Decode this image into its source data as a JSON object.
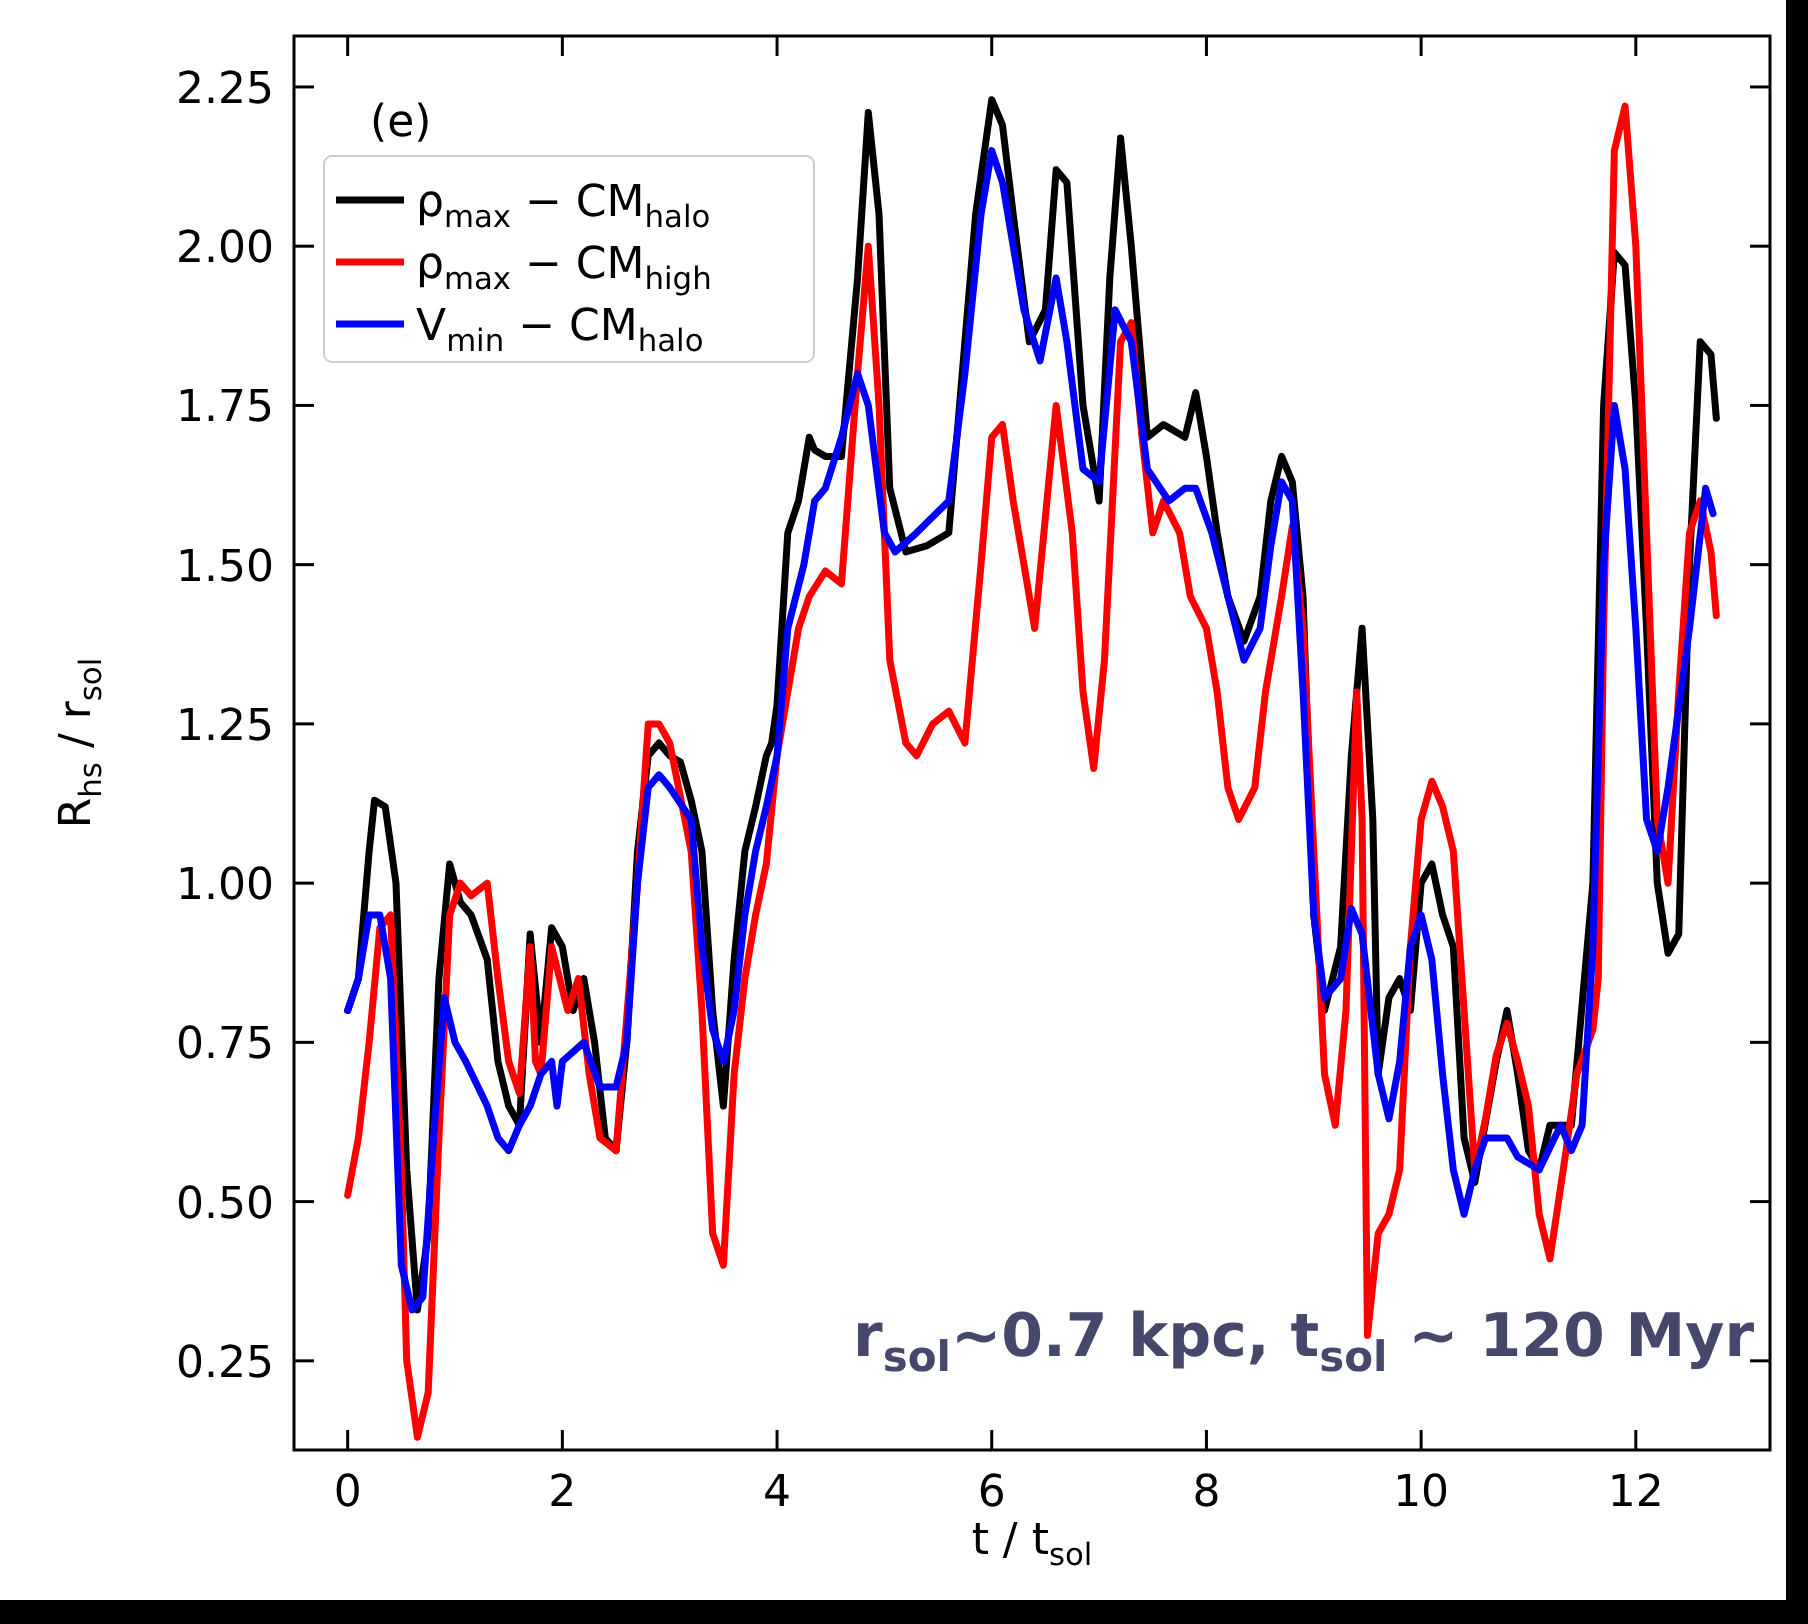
{
  "chart_data": {
    "type": "line",
    "xlabel": "t / t$_{sol}$",
    "ylabel": "R$_{hs}$ / r$_{sol}$",
    "xlim": [
      -0.5,
      13.25
    ],
    "ylim": [
      0.11,
      2.33
    ],
    "xticks": [
      0,
      2,
      4,
      6,
      8,
      10,
      12
    ],
    "yticks": [
      {
        "value": 0.25,
        "label": "0.25"
      },
      {
        "value": 0.5,
        "label": "0.50"
      },
      {
        "value": 0.75,
        "label": "0.75"
      },
      {
        "value": 1,
        "label": "1.00"
      },
      {
        "value": 1.25,
        "label": "1.25"
      },
      {
        "value": 1.5,
        "label": "1.50"
      },
      {
        "value": 1.75,
        "label": "1.75"
      },
      {
        "value": 2,
        "label": "2.00"
      },
      {
        "value": 2.25,
        "label": "2.25"
      }
    ],
    "grid": false,
    "legend": "top left",
    "line_style": "solid",
    "marker": "none",
    "annotations": [
      "(e)",
      "r$_{sol}$~0.7 kpc, t$_{sol}$ ~ 120 Myr"
    ],
    "series": [
      {
        "name": "ρ$_{max}$ − CM$_{halo}$",
        "color": "#000000",
        "x": [
          0,
          0.1,
          0.2,
          0.25,
          0.35,
          0.45,
          0.55,
          0.65,
          0.75,
          0.85,
          0.95,
          1.05,
          1.15,
          1.3,
          1.4,
          1.5,
          1.6,
          1.7,
          1.8,
          1.9,
          2.0,
          2.1,
          2.2,
          2.3,
          2.4,
          2.5,
          2.6,
          2.7,
          2.8,
          2.9,
          3.0,
          3.1,
          3.2,
          3.3,
          3.4,
          3.5,
          3.6,
          3.7,
          3.8,
          3.9,
          3.95,
          4.0,
          4.1,
          4.2,
          4.3,
          4.35,
          4.45,
          4.6,
          4.75,
          4.85,
          4.95,
          5.05,
          5.2,
          5.4,
          5.6,
          5.7,
          5.85,
          6.0,
          6.1,
          6.2,
          6.35,
          6.5,
          6.6,
          6.7,
          6.85,
          7.0,
          7.1,
          7.2,
          7.3,
          7.45,
          7.6,
          7.8,
          7.9,
          8.0,
          8.1,
          8.2,
          8.35,
          8.5,
          8.6,
          8.7,
          8.8,
          8.9,
          9.0,
          9.1,
          9.25,
          9.35,
          9.45,
          9.55,
          9.6,
          9.7,
          9.8,
          9.9,
          10.0,
          10.1,
          10.2,
          10.3,
          10.4,
          10.5,
          10.7,
          10.8,
          10.9,
          11.0,
          11.1,
          11.2,
          11.4,
          11.6,
          11.7,
          11.8,
          11.9,
          12.0,
          12.1,
          12.2,
          12.3,
          12.4,
          12.5,
          12.6,
          12.7,
          12.75
        ],
        "values": [
          0.8,
          0.85,
          1.05,
          1.13,
          1.12,
          1.0,
          0.55,
          0.33,
          0.45,
          0.85,
          1.03,
          0.97,
          0.95,
          0.88,
          0.72,
          0.65,
          0.62,
          0.92,
          0.75,
          0.93,
          0.9,
          0.8,
          0.85,
          0.75,
          0.6,
          0.58,
          0.75,
          1.05,
          1.2,
          1.22,
          1.2,
          1.19,
          1.13,
          1.05,
          0.8,
          0.65,
          0.88,
          1.05,
          1.12,
          1.2,
          1.22,
          1.28,
          1.55,
          1.6,
          1.7,
          1.68,
          1.67,
          1.67,
          1.95,
          2.21,
          2.05,
          1.62,
          1.52,
          1.53,
          1.55,
          1.75,
          2.05,
          2.23,
          2.19,
          2.05,
          1.85,
          1.9,
          2.12,
          2.1,
          1.75,
          1.6,
          1.95,
          2.17,
          2.0,
          1.7,
          1.72,
          1.7,
          1.77,
          1.67,
          1.55,
          1.45,
          1.38,
          1.45,
          1.6,
          1.67,
          1.63,
          1.45,
          0.95,
          0.8,
          0.9,
          1.2,
          1.4,
          1.1,
          0.7,
          0.82,
          0.85,
          0.8,
          1.0,
          1.03,
          0.95,
          0.9,
          0.6,
          0.53,
          0.72,
          0.8,
          0.7,
          0.58,
          0.55,
          0.62,
          0.62,
          1.0,
          1.75,
          1.99,
          1.97,
          1.75,
          1.4,
          1.0,
          0.89,
          0.92,
          1.5,
          1.85,
          1.83,
          1.73
        ]
      },
      {
        "name": "ρ$_{max}$ − CM$_{high}$",
        "color": "#ff0000",
        "x": [
          0,
          0.1,
          0.2,
          0.3,
          0.4,
          0.5,
          0.55,
          0.65,
          0.75,
          0.85,
          0.95,
          1.05,
          1.15,
          1.3,
          1.4,
          1.5,
          1.6,
          1.7,
          1.75,
          1.8,
          1.9,
          2.05,
          2.15,
          2.25,
          2.35,
          2.5,
          2.7,
          2.8,
          2.9,
          3.0,
          3.2,
          3.3,
          3.4,
          3.5,
          3.6,
          3.7,
          3.8,
          3.9,
          4.0,
          4.2,
          4.3,
          4.45,
          4.6,
          4.75,
          4.85,
          4.95,
          5.05,
          5.2,
          5.3,
          5.45,
          5.6,
          5.75,
          5.9,
          6.0,
          6.1,
          6.2,
          6.4,
          6.6,
          6.75,
          6.85,
          6.95,
          7.05,
          7.2,
          7.3,
          7.4,
          7.5,
          7.6,
          7.75,
          7.85,
          8.0,
          8.1,
          8.2,
          8.3,
          8.45,
          8.55,
          8.7,
          8.8,
          8.9,
          9.0,
          9.1,
          9.2,
          9.3,
          9.4,
          9.45,
          9.5,
          9.6,
          9.7,
          9.8,
          9.9,
          10.0,
          10.1,
          10.2,
          10.3,
          10.4,
          10.5,
          10.6,
          10.7,
          10.8,
          10.9,
          11.0,
          11.1,
          11.2,
          11.35,
          11.45,
          11.6,
          11.65,
          11.7,
          11.8,
          11.9,
          12.0,
          12.1,
          12.2,
          12.3,
          12.4,
          12.5,
          12.6,
          12.7,
          12.75
        ],
        "values": [
          0.51,
          0.6,
          0.75,
          0.93,
          0.95,
          0.55,
          0.25,
          0.13,
          0.2,
          0.6,
          0.95,
          1.0,
          0.98,
          1.0,
          0.85,
          0.72,
          0.67,
          0.9,
          0.72,
          0.7,
          0.9,
          0.8,
          0.85,
          0.7,
          0.6,
          0.58,
          1.0,
          1.25,
          1.25,
          1.22,
          1.05,
          0.8,
          0.45,
          0.4,
          0.7,
          0.85,
          0.95,
          1.03,
          1.2,
          1.4,
          1.45,
          1.49,
          1.47,
          1.8,
          2.0,
          1.75,
          1.35,
          1.22,
          1.2,
          1.25,
          1.27,
          1.22,
          1.5,
          1.7,
          1.72,
          1.6,
          1.4,
          1.75,
          1.55,
          1.3,
          1.18,
          1.35,
          1.85,
          1.88,
          1.7,
          1.55,
          1.6,
          1.55,
          1.45,
          1.4,
          1.3,
          1.15,
          1.1,
          1.15,
          1.3,
          1.45,
          1.56,
          1.4,
          1.05,
          0.7,
          0.62,
          0.8,
          1.3,
          1.1,
          0.29,
          0.45,
          0.48,
          0.55,
          0.9,
          1.1,
          1.16,
          1.12,
          1.05,
          0.8,
          0.55,
          0.63,
          0.73,
          0.78,
          0.72,
          0.65,
          0.48,
          0.41,
          0.58,
          0.7,
          0.77,
          0.85,
          1.4,
          2.15,
          2.22,
          2.0,
          1.55,
          1.1,
          1.0,
          1.3,
          1.55,
          1.6,
          1.52,
          1.42
        ]
      },
      {
        "name": "V$_{min}$ − CM$_{halo}$",
        "color": "#0000ff",
        "x": [
          0,
          0.1,
          0.2,
          0.3,
          0.4,
          0.5,
          0.6,
          0.7,
          0.8,
          0.9,
          1.0,
          1.1,
          1.3,
          1.4,
          1.5,
          1.6,
          1.7,
          1.8,
          1.9,
          1.95,
          2.0,
          2.2,
          2.35,
          2.5,
          2.6,
          2.7,
          2.8,
          2.9,
          3.0,
          3.2,
          3.3,
          3.4,
          3.5,
          3.6,
          3.7,
          3.8,
          3.9,
          4.0,
          4.1,
          4.25,
          4.35,
          4.45,
          4.6,
          4.75,
          4.85,
          5.0,
          5.1,
          5.3,
          5.6,
          5.75,
          5.9,
          6.0,
          6.1,
          6.3,
          6.45,
          6.6,
          6.7,
          6.85,
          7.0,
          7.15,
          7.3,
          7.45,
          7.65,
          7.8,
          7.9,
          8.05,
          8.2,
          8.35,
          8.5,
          8.6,
          8.7,
          8.8,
          8.9,
          9.0,
          9.1,
          9.25,
          9.35,
          9.45,
          9.6,
          9.7,
          9.8,
          9.9,
          10.0,
          10.1,
          10.2,
          10.3,
          10.4,
          10.5,
          10.6,
          10.8,
          10.9,
          11.1,
          11.3,
          11.4,
          11.5,
          11.6,
          11.7,
          11.8,
          11.9,
          12.0,
          12.1,
          12.2,
          12.3,
          12.5,
          12.65,
          12.72
        ],
        "values": [
          0.8,
          0.85,
          0.95,
          0.95,
          0.85,
          0.4,
          0.33,
          0.35,
          0.6,
          0.82,
          0.75,
          0.72,
          0.65,
          0.6,
          0.58,
          0.62,
          0.65,
          0.7,
          0.72,
          0.65,
          0.72,
          0.75,
          0.68,
          0.68,
          0.75,
          1.0,
          1.15,
          1.17,
          1.15,
          1.1,
          0.9,
          0.77,
          0.72,
          0.8,
          0.95,
          1.05,
          1.12,
          1.2,
          1.4,
          1.5,
          1.6,
          1.62,
          1.7,
          1.8,
          1.75,
          1.55,
          1.52,
          1.55,
          1.6,
          1.8,
          2.05,
          2.15,
          2.1,
          1.9,
          1.82,
          1.95,
          1.85,
          1.65,
          1.63,
          1.9,
          1.85,
          1.65,
          1.6,
          1.62,
          1.62,
          1.55,
          1.45,
          1.35,
          1.4,
          1.53,
          1.63,
          1.6,
          1.3,
          0.95,
          0.82,
          0.85,
          0.96,
          0.92,
          0.7,
          0.63,
          0.72,
          0.9,
          0.95,
          0.88,
          0.7,
          0.55,
          0.48,
          0.55,
          0.6,
          0.6,
          0.57,
          0.55,
          0.62,
          0.58,
          0.62,
          0.9,
          1.5,
          1.75,
          1.65,
          1.4,
          1.1,
          1.05,
          1.15,
          1.4,
          1.62,
          1.58
        ]
      }
    ]
  }
}
